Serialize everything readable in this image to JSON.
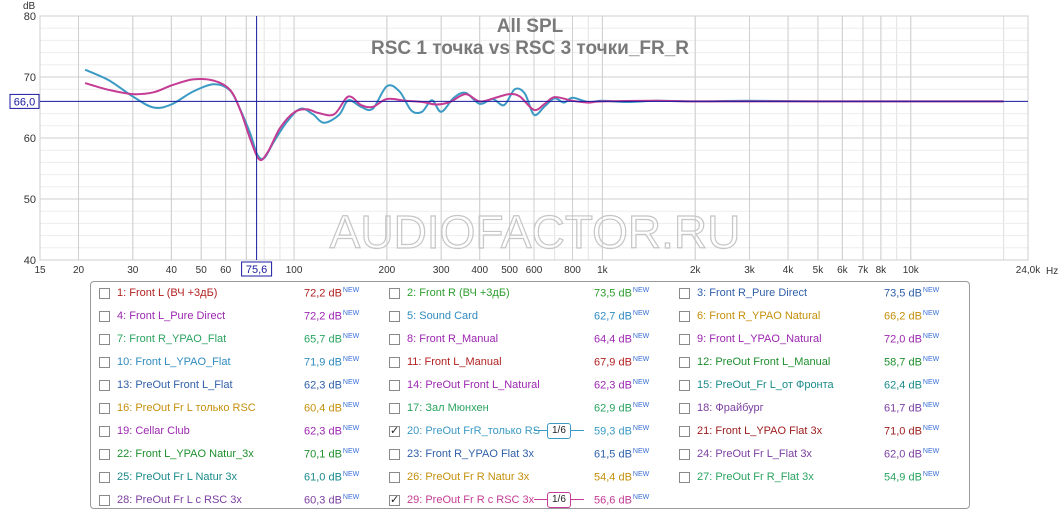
{
  "chart_data": {
    "type": "line",
    "title": "All SPL",
    "subtitle": "RSC 1 точка vs RSC 3 точки_FR_R",
    "watermark": "AUDIOFACTOR.RU",
    "y_unit": "dB",
    "x_unit": "Hz",
    "xscale": "log",
    "xlim": [
      15,
      24000
    ],
    "ylim": [
      40,
      80
    ],
    "grid": true,
    "x_ticks": [
      {
        "v": 15,
        "label": "15"
      },
      {
        "v": 20,
        "label": "20"
      },
      {
        "v": 30,
        "label": "30"
      },
      {
        "v": 40,
        "label": "40"
      },
      {
        "v": 50,
        "label": "50"
      },
      {
        "v": 60,
        "label": "60"
      },
      {
        "v": 70,
        "label": "70"
      },
      {
        "v": 100,
        "label": "100"
      },
      {
        "v": 200,
        "label": "200"
      },
      {
        "v": 300,
        "label": "300"
      },
      {
        "v": 400,
        "label": "400"
      },
      {
        "v": 500,
        "label": "500"
      },
      {
        "v": 600,
        "label": "600"
      },
      {
        "v": 800,
        "label": "800"
      },
      {
        "v": 1000,
        "label": "1k"
      },
      {
        "v": 2000,
        "label": "2k"
      },
      {
        "v": 3000,
        "label": "3k"
      },
      {
        "v": 4000,
        "label": "4k"
      },
      {
        "v": 5000,
        "label": "5k"
      },
      {
        "v": 6000,
        "label": "6k"
      },
      {
        "v": 7000,
        "label": "7k"
      },
      {
        "v": 8000,
        "label": "8k"
      },
      {
        "v": 10000,
        "label": "10k"
      },
      {
        "v": 24000,
        "label": "24,0k"
      }
    ],
    "y_ticks": [
      {
        "v": 40,
        "label": "40"
      },
      {
        "v": 50,
        "label": "50"
      },
      {
        "v": 60,
        "label": "60"
      },
      {
        "v": 70,
        "label": "70"
      },
      {
        "v": 80,
        "label": "80"
      }
    ],
    "cursor": {
      "x": 75.6,
      "x_label": "75,6",
      "y": 66.0,
      "y_label": "66,0"
    },
    "series": [
      {
        "name": "20: PreOut FrR_только RS",
        "color": "#3b9ac4",
        "points": [
          [
            21,
            71.2
          ],
          [
            25,
            69.5
          ],
          [
            30,
            66.8
          ],
          [
            35,
            65.0
          ],
          [
            40,
            65.5
          ],
          [
            47,
            67.6
          ],
          [
            55,
            68.8
          ],
          [
            62,
            67.8
          ],
          [
            67,
            64.6
          ],
          [
            72,
            60.8
          ],
          [
            76,
            57.3
          ],
          [
            80,
            56.7
          ],
          [
            86,
            59.4
          ],
          [
            95,
            62.7
          ],
          [
            105,
            64.8
          ],
          [
            115,
            63.9
          ],
          [
            125,
            62.5
          ],
          [
            140,
            63.8
          ],
          [
            150,
            66.2
          ],
          [
            165,
            65.1
          ],
          [
            180,
            64.8
          ],
          [
            200,
            68.5
          ],
          [
            220,
            67.6
          ],
          [
            240,
            64.5
          ],
          [
            260,
            64.3
          ],
          [
            280,
            66.2
          ],
          [
            300,
            64.3
          ],
          [
            330,
            66.6
          ],
          [
            360,
            67.4
          ],
          [
            400,
            65.6
          ],
          [
            440,
            66.4
          ],
          [
            480,
            65.4
          ],
          [
            520,
            68.0
          ],
          [
            560,
            67.3
          ],
          [
            600,
            63.8
          ],
          [
            650,
            65.2
          ],
          [
            700,
            66.5
          ],
          [
            750,
            65.8
          ],
          [
            800,
            66.6
          ],
          [
            900,
            65.9
          ],
          [
            1000,
            66.1
          ],
          [
            1200,
            65.9
          ],
          [
            1500,
            66.1
          ],
          [
            2000,
            66.0
          ],
          [
            3000,
            66.1
          ],
          [
            5000,
            66.0
          ],
          [
            10000,
            66.0
          ],
          [
            20000,
            66.0
          ]
        ]
      },
      {
        "name": "29: PreOut Fr R c RSC 3x",
        "color": "#c43c93",
        "points": [
          [
            21,
            69.0
          ],
          [
            25,
            67.9
          ],
          [
            30,
            67.2
          ],
          [
            35,
            67.5
          ],
          [
            40,
            68.6
          ],
          [
            47,
            69.6
          ],
          [
            55,
            69.4
          ],
          [
            62,
            67.9
          ],
          [
            67,
            64.5
          ],
          [
            72,
            59.9
          ],
          [
            77,
            56.5
          ],
          [
            82,
            57.6
          ],
          [
            90,
            61.6
          ],
          [
            100,
            64.2
          ],
          [
            110,
            64.7
          ],
          [
            120,
            64.1
          ],
          [
            135,
            63.9
          ],
          [
            150,
            66.8
          ],
          [
            165,
            65.4
          ],
          [
            180,
            65.1
          ],
          [
            200,
            66.4
          ],
          [
            230,
            66.1
          ],
          [
            260,
            65.9
          ],
          [
            290,
            65.5
          ],
          [
            320,
            65.9
          ],
          [
            360,
            67.2
          ],
          [
            400,
            66.0
          ],
          [
            450,
            66.6
          ],
          [
            500,
            67.2
          ],
          [
            540,
            66.8
          ],
          [
            600,
            64.6
          ],
          [
            650,
            65.6
          ],
          [
            700,
            66.7
          ],
          [
            800,
            66.1
          ],
          [
            900,
            65.8
          ],
          [
            1000,
            66.0
          ],
          [
            1500,
            66.1
          ],
          [
            2000,
            66.0
          ],
          [
            5000,
            66.0
          ],
          [
            20000,
            66.0
          ]
        ]
      }
    ]
  },
  "legend": {
    "new_badge": "NEW",
    "columns": [
      [
        {
          "label": "1: Front L (ВЧ +3дБ)",
          "value": "72,2 dB",
          "color": "#b22222",
          "checked": false
        },
        {
          "label": "4: Front L_Pure Direct",
          "value": "72,2 dB",
          "color": "#9c27b0",
          "checked": false
        },
        {
          "label": "7: Front R_YPAO_Flat",
          "value": "65,7 dB",
          "color": "#2aa360",
          "checked": false
        },
        {
          "label": "10: Front L_YPAO_Flat",
          "value": "71,9 dB",
          "color": "#2f8bbf",
          "checked": false
        },
        {
          "label": "13: PreOut Front L_Flat",
          "value": "62,3 dB",
          "color": "#2f5fa8",
          "checked": false
        },
        {
          "label": "16: PreOut Fr L только RSC",
          "value": "60,4 dB",
          "color": "#c4900c",
          "checked": false
        },
        {
          "label": "19: Cellar Club",
          "value": "62,3 dB",
          "color": "#9c27b0",
          "checked": false
        },
        {
          "label": "22: Front L_YPAO Natur_3x",
          "value": "70,1 dB",
          "color": "#1e8e2e",
          "checked": false
        },
        {
          "label": "25: PreOut Fr L Natur 3x",
          "value": "61,0 dB",
          "color": "#1b8a8a",
          "checked": false
        },
        {
          "label": "28: PreOut Fr L c RSC 3x",
          "value": "60,3 dB",
          "color": "#7b3fa0",
          "checked": false
        }
      ],
      [
        {
          "label": "2: Front R (ВЧ +3дБ)",
          "value": "73,5 dB",
          "color": "#2e9e2e",
          "checked": false
        },
        {
          "label": "5: Sound Card",
          "value": "62,7 dB",
          "color": "#2f8bbf",
          "checked": false
        },
        {
          "label": "8: Front R_Manual",
          "value": "64,4 dB",
          "color": "#9c27b0",
          "checked": false
        },
        {
          "label": "11: Front L_Manual",
          "value": "67,9 dB",
          "color": "#b22222",
          "checked": false
        },
        {
          "label": "14: PreOut Front L_Natural",
          "value": "62,3 dB",
          "color": "#9c27b0",
          "checked": false
        },
        {
          "label": "17: Зал Мюнхен",
          "value": "62,9 dB",
          "color": "#2aa360",
          "checked": false
        },
        {
          "label": "20: PreOut FrR_только RS",
          "value": "59,3 dB",
          "color": "#3b9ac4",
          "checked": true,
          "smooth": "1/6"
        },
        {
          "label": "23: Front R_YPAO Flat 3x",
          "value": "61,5 dB",
          "color": "#2f5fa8",
          "checked": false
        },
        {
          "label": "26: PreOut Fr R Natur 3x",
          "value": "54,4 dB",
          "color": "#c4900c",
          "checked": false
        },
        {
          "label": "29: PreOut Fr R c RSC 3x",
          "value": "56,6 dB",
          "color": "#c43c93",
          "checked": true,
          "smooth": "1/6"
        }
      ],
      [
        {
          "label": "3: Front R_Pure Direct",
          "value": "73,5 dB",
          "color": "#2f5fa8",
          "checked": false
        },
        {
          "label": "6: Front R_YPAO Natural",
          "value": "66,2 dB",
          "color": "#c4900c",
          "checked": false
        },
        {
          "label": "9: Front L_YPAO_Natural",
          "value": "72,0 dB",
          "color": "#9c27b0",
          "checked": false
        },
        {
          "label": "12: PreOut Front L_Manual",
          "value": "58,7 dB",
          "color": "#1e8e2e",
          "checked": false
        },
        {
          "label": "15: PreOut_Fr L_от Фронта",
          "value": "62,4 dB",
          "color": "#1b8a8a",
          "checked": false
        },
        {
          "label": "18: Фрайбург",
          "value": "61,7 dB",
          "color": "#7b3fa0",
          "checked": false
        },
        {
          "label": "21: Front L_YPAO Flat 3x",
          "value": "71,0 dB",
          "color": "#9b1b1b",
          "checked": false
        },
        {
          "label": "24: PreOut Fr L_Flat 3x",
          "value": "62,0 dB",
          "color": "#7b3fa0",
          "checked": false
        },
        {
          "label": "27: PreOut Fr R_Flat 3x",
          "value": "54,9 dB",
          "color": "#2aa360",
          "checked": false
        }
      ]
    ]
  }
}
